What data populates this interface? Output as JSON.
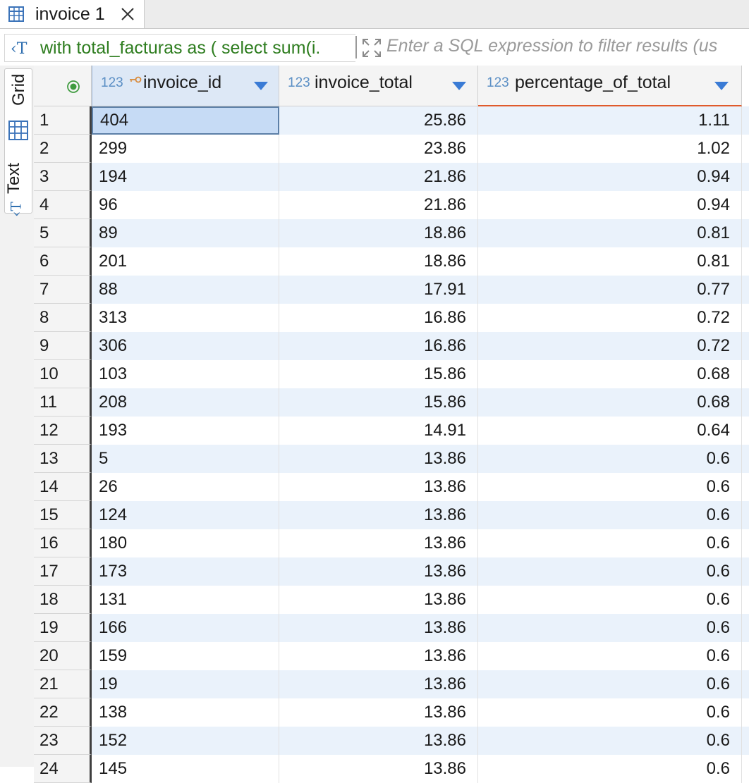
{
  "tab": {
    "label": "invoice 1",
    "icon": "table-icon",
    "close_icon": "close-icon"
  },
  "filter": {
    "sql_icon": "sql-text-icon",
    "sql_text": "with total_facturas as ( select sum(i.",
    "expand_icon": "expand-icon",
    "placeholder": "Enter a SQL expression to filter results (us"
  },
  "side_tabs": {
    "grid_label": "Grid",
    "grid_icon": "grid-icon",
    "text_label": "Text",
    "text_icon": "text-icon"
  },
  "columns": [
    {
      "type": "123",
      "label": "invoice_id",
      "key_icon": "key-icon"
    },
    {
      "type": "123",
      "label": "invoice_total"
    },
    {
      "type": "123",
      "label": "percentage_of_total"
    }
  ],
  "rows": [
    {
      "num": "1",
      "invoice_id": "404",
      "invoice_total": "25.86",
      "percentage": "1.11"
    },
    {
      "num": "2",
      "invoice_id": "299",
      "invoice_total": "23.86",
      "percentage": "1.02"
    },
    {
      "num": "3",
      "invoice_id": "194",
      "invoice_total": "21.86",
      "percentage": "0.94"
    },
    {
      "num": "4",
      "invoice_id": "96",
      "invoice_total": "21.86",
      "percentage": "0.94"
    },
    {
      "num": "5",
      "invoice_id": "89",
      "invoice_total": "18.86",
      "percentage": "0.81"
    },
    {
      "num": "6",
      "invoice_id": "201",
      "invoice_total": "18.86",
      "percentage": "0.81"
    },
    {
      "num": "7",
      "invoice_id": "88",
      "invoice_total": "17.91",
      "percentage": "0.77"
    },
    {
      "num": "8",
      "invoice_id": "313",
      "invoice_total": "16.86",
      "percentage": "0.72"
    },
    {
      "num": "9",
      "invoice_id": "306",
      "invoice_total": "16.86",
      "percentage": "0.72"
    },
    {
      "num": "10",
      "invoice_id": "103",
      "invoice_total": "15.86",
      "percentage": "0.68"
    },
    {
      "num": "11",
      "invoice_id": "208",
      "invoice_total": "15.86",
      "percentage": "0.68"
    },
    {
      "num": "12",
      "invoice_id": "193",
      "invoice_total": "14.91",
      "percentage": "0.64"
    },
    {
      "num": "13",
      "invoice_id": "5",
      "invoice_total": "13.86",
      "percentage": "0.6"
    },
    {
      "num": "14",
      "invoice_id": "26",
      "invoice_total": "13.86",
      "percentage": "0.6"
    },
    {
      "num": "15",
      "invoice_id": "124",
      "invoice_total": "13.86",
      "percentage": "0.6"
    },
    {
      "num": "16",
      "invoice_id": "180",
      "invoice_total": "13.86",
      "percentage": "0.6"
    },
    {
      "num": "17",
      "invoice_id": "173",
      "invoice_total": "13.86",
      "percentage": "0.6"
    },
    {
      "num": "18",
      "invoice_id": "131",
      "invoice_total": "13.86",
      "percentage": "0.6"
    },
    {
      "num": "19",
      "invoice_id": "166",
      "invoice_total": "13.86",
      "percentage": "0.6"
    },
    {
      "num": "20",
      "invoice_id": "159",
      "invoice_total": "13.86",
      "percentage": "0.6"
    },
    {
      "num": "21",
      "invoice_id": "19",
      "invoice_total": "13.86",
      "percentage": "0.6"
    },
    {
      "num": "22",
      "invoice_id": "138",
      "invoice_total": "13.86",
      "percentage": "0.6"
    },
    {
      "num": "23",
      "invoice_id": "152",
      "invoice_total": "13.86",
      "percentage": "0.6"
    },
    {
      "num": "24",
      "invoice_id": "145",
      "invoice_total": "13.86",
      "percentage": "0.6"
    }
  ],
  "selected_row": 0,
  "colors": {
    "accent": "#2f6fb0",
    "sql_text": "#2e7d1f",
    "row_stripe": "#eaf2fb",
    "selection": "#c6dbf5",
    "sorted_column_underline": "#e05a2b"
  }
}
